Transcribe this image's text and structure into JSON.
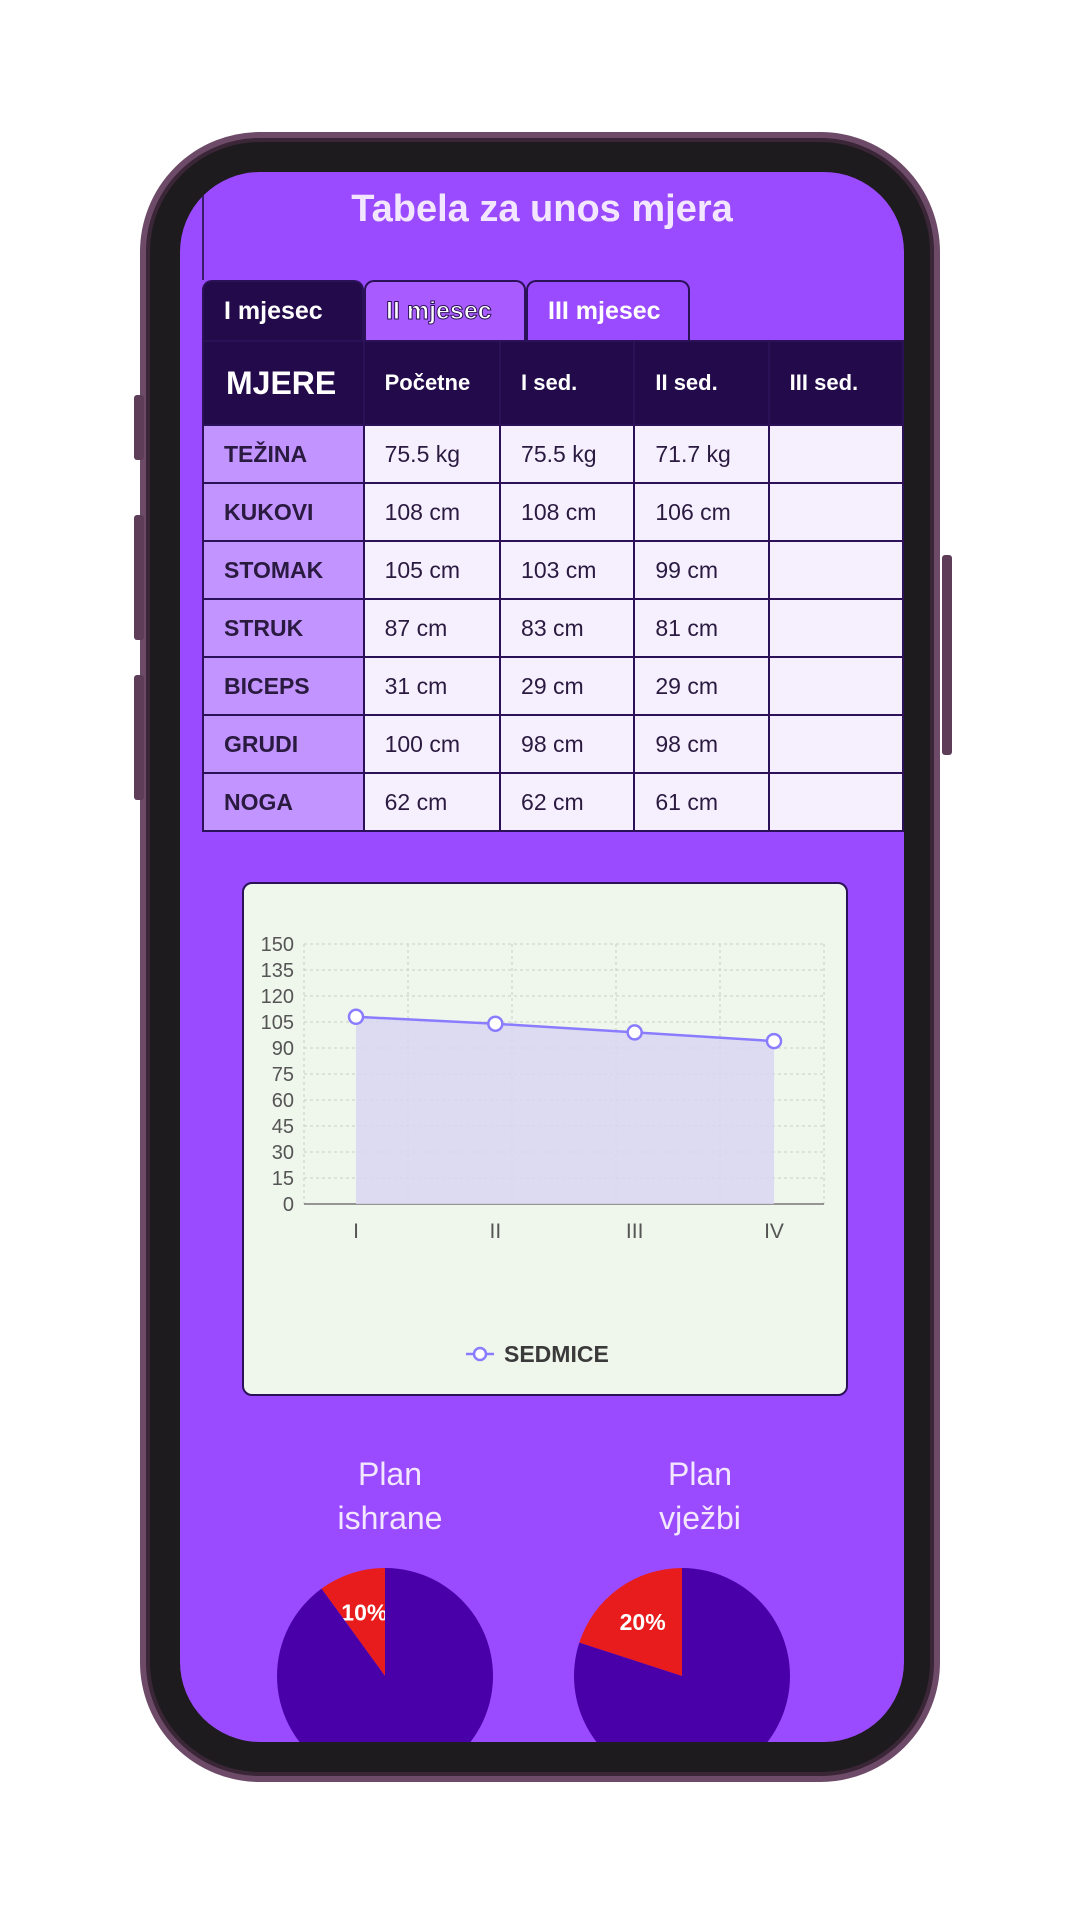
{
  "title": "Tabela za unos mjera",
  "tabs": [
    "I mjesec",
    "II mjesec",
    "III mjesec"
  ],
  "table": {
    "headers": [
      "MJERE",
      "Početne",
      "I sed.",
      "II sed.",
      "III sed."
    ],
    "rows": [
      {
        "label": "TEŽINA",
        "values": [
          "75.5 kg",
          "75.5 kg",
          "71.7 kg",
          ""
        ]
      },
      {
        "label": "KUKOVI",
        "values": [
          "108 cm",
          "108 cm",
          "106 cm",
          ""
        ]
      },
      {
        "label": "STOMAK",
        "values": [
          "105 cm",
          "103 cm",
          "99 cm",
          ""
        ]
      },
      {
        "label": "STRUK",
        "values": [
          "87 cm",
          "83 cm",
          "81 cm",
          ""
        ]
      },
      {
        "label": "BICEPS",
        "values": [
          "31 cm",
          "29 cm",
          "29 cm",
          ""
        ]
      },
      {
        "label": "GRUDI",
        "values": [
          "100 cm",
          "98 cm",
          "98 cm",
          ""
        ]
      },
      {
        "label": "NOGA",
        "values": [
          "62 cm",
          "62 cm",
          "61 cm",
          ""
        ]
      }
    ]
  },
  "chart_data": {
    "type": "area",
    "categories": [
      "I",
      "II",
      "III",
      "IV"
    ],
    "series": [
      {
        "name": "SEDMICE",
        "values": [
          108,
          104,
          99,
          94
        ]
      }
    ],
    "ylim": [
      0,
      150
    ],
    "yticks": [
      0,
      15,
      30,
      45,
      60,
      75,
      90,
      105,
      120,
      135,
      150
    ],
    "grid": true,
    "legend": "bottom",
    "colors": {
      "line": "#8a7cff",
      "fill": "#d9d6f2"
    }
  },
  "pies": [
    {
      "title_line1": "Plan",
      "title_line2": "ishrane",
      "slices": [
        {
          "label": "10%",
          "value": 10,
          "color": "#e81c1c"
        },
        {
          "label": "90%",
          "value": 90,
          "color": "#4a00a8"
        }
      ]
    },
    {
      "title_line1": "Plan",
      "title_line2": "vježbi",
      "slices": [
        {
          "label": "20%",
          "value": 20,
          "color": "#e81c1c"
        },
        {
          "label": "80%",
          "value": 80,
          "color": "#4a00a8"
        }
      ]
    }
  ],
  "colors": {
    "accent": "#9b4bff",
    "dark": "#230a4a",
    "label_cell": "#c294ff"
  }
}
